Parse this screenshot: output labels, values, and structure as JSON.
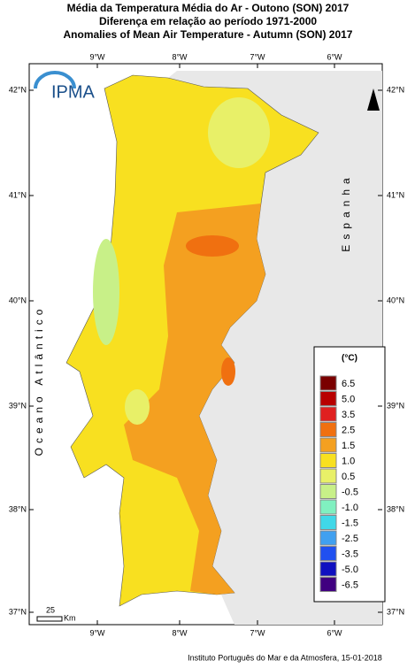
{
  "header": {
    "title_pt": "Média da Temperatura Média do Ar  - Outono (SON) 2017",
    "subtitle_pt": "Diferença em relação ao período 1971-2000",
    "title_en": "Anomalies of Mean Air Temperature - Autumn (SON) 2017"
  },
  "map": {
    "lon_labels": [
      "9°W",
      "8°W",
      "7°W",
      "6°W"
    ],
    "lat_labels": [
      "42°N",
      "41°N",
      "40°N",
      "39°N",
      "38°N",
      "37°N"
    ],
    "ocean_label": "Oceano Atlântico",
    "country_label": "Espanha",
    "logo": "IPMA",
    "scale_value": "25",
    "scale_unit": "Km"
  },
  "legend": {
    "title": "(°C)",
    "labels": [
      "6.5",
      "5.0",
      "3.5",
      "2.5",
      "1.5",
      "1.0",
      "0.5",
      "-0.5",
      "-1.0",
      "-1.5",
      "-2.5",
      "-3.5",
      "-5.0",
      "-6.5"
    ],
    "colors": [
      "#7a0000",
      "#b80000",
      "#e02020",
      "#f07010",
      "#f4a020",
      "#f8e020",
      "#e8f068",
      "#c8f088",
      "#80f0c0",
      "#40d8e8",
      "#40a0f0",
      "#2050f0",
      "#1010c0",
      "#400080"
    ]
  },
  "footer": {
    "credit": "Instituto Português do Mar e da Atmosfera, 15-01-2018"
  }
}
